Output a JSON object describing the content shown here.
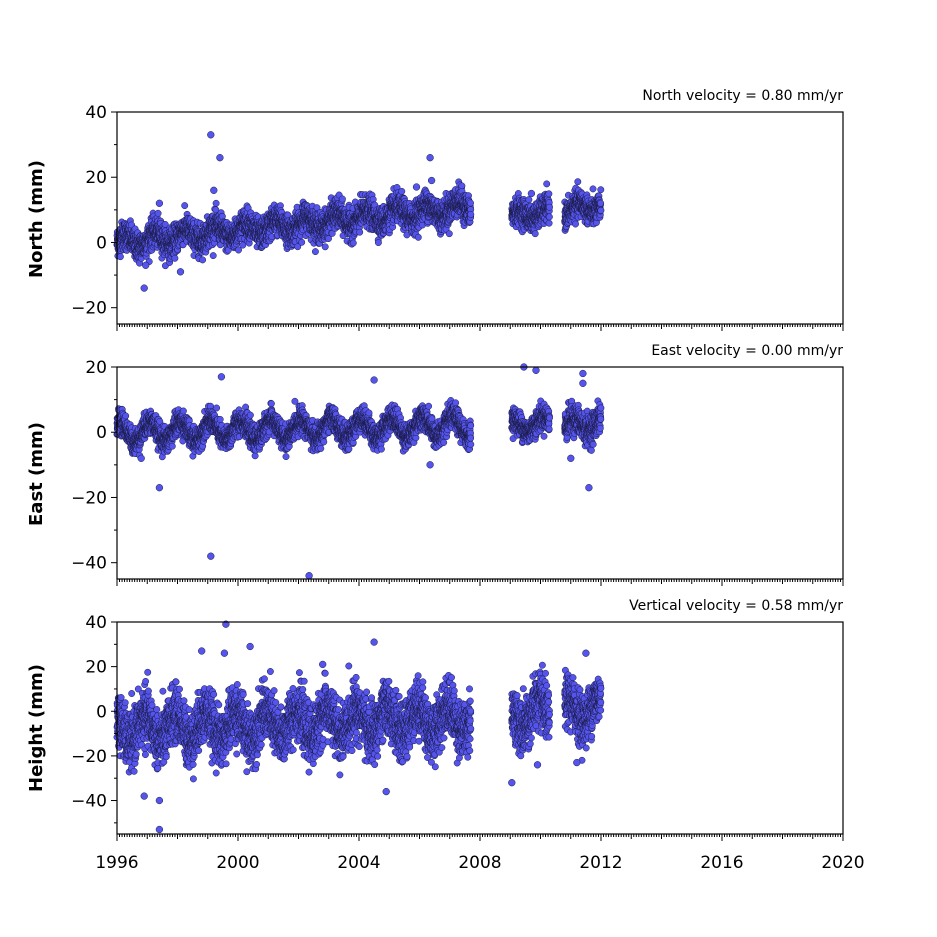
{
  "chart_data": [
    {
      "type": "scatter",
      "title": "North velocity = 0.80 mm/yr",
      "xlabel": "",
      "ylabel": "North (mm)",
      "xlim": [
        1996,
        2020
      ],
      "ylim": [
        -25,
        40
      ],
      "yticks": [
        40,
        20,
        0,
        -20
      ],
      "ytick_labels": [
        "40",
        "20",
        "0",
        "−20"
      ],
      "segments": [
        {
          "x": [
            1996.0,
            2007.7
          ],
          "trend": [
            0.0,
            11.0
          ],
          "amp": 2.0,
          "noise": 2.2
        },
        {
          "x": [
            2009.05,
            2010.3
          ],
          "trend": [
            8.0,
            9.5
          ],
          "amp": 1.5,
          "noise": 2.0
        },
        {
          "x": [
            2010.8,
            2012.0
          ],
          "trend": [
            9.5,
            11.5
          ],
          "amp": 1.8,
          "noise": 2.0
        }
      ],
      "outliers": [
        {
          "x": 1999.1,
          "y": 33
        },
        {
          "x": 1999.4,
          "y": 26
        },
        {
          "x": 1999.2,
          "y": 16
        },
        {
          "x": 2006.35,
          "y": 26
        },
        {
          "x": 2006.4,
          "y": 19
        },
        {
          "x": 1996.9,
          "y": -14
        },
        {
          "x": 1997.4,
          "y": 12
        },
        {
          "x": 1998.1,
          "y": -9
        },
        {
          "x": 2005.9,
          "y": 17
        },
        {
          "x": 2009.7,
          "y": 15
        },
        {
          "x": 1996.95,
          "y": -7
        }
      ],
      "grid": false
    },
    {
      "type": "scatter",
      "title": "East velocity = 0.00 mm/yr",
      "xlabel": "",
      "ylabel": "East (mm)",
      "xlim": [
        1996,
        2020
      ],
      "ylim": [
        -45,
        20
      ],
      "yticks": [
        20,
        0,
        -20,
        -40
      ],
      "ytick_labels": [
        "20",
        "0",
        "−20",
        "−40"
      ],
      "segments": [
        {
          "x": [
            1996.0,
            2007.7
          ],
          "trend": [
            0.0,
            2.0
          ],
          "amp": 3.0,
          "noise": 1.8
        },
        {
          "x": [
            2009.05,
            2010.3
          ],
          "trend": [
            2.0,
            3.0
          ],
          "amp": 2.0,
          "noise": 1.8
        },
        {
          "x": [
            2010.8,
            2012.0
          ],
          "trend": [
            2.0,
            3.0
          ],
          "amp": 2.0,
          "noise": 2.2
        }
      ],
      "outliers": [
        {
          "x": 1999.1,
          "y": -38
        },
        {
          "x": 2002.35,
          "y": -44
        },
        {
          "x": 1997.4,
          "y": -17
        },
        {
          "x": 1999.45,
          "y": 17
        },
        {
          "x": 2004.5,
          "y": 16
        },
        {
          "x": 2009.45,
          "y": 20
        },
        {
          "x": 2009.85,
          "y": 19
        },
        {
          "x": 2011.4,
          "y": 18
        },
        {
          "x": 2011.4,
          "y": 15
        },
        {
          "x": 2011.6,
          "y": -17
        },
        {
          "x": 2011.0,
          "y": -8
        },
        {
          "x": 2006.35,
          "y": -10
        },
        {
          "x": 1996.8,
          "y": -8
        }
      ],
      "grid": false
    },
    {
      "type": "scatter",
      "title": "Vertical velocity = 0.58 mm/yr",
      "xlabel": "",
      "ylabel": "Height (mm)",
      "xlim": [
        1996,
        2020
      ],
      "ylim": [
        -55,
        40
      ],
      "yticks": [
        40,
        20,
        0,
        -20,
        -40
      ],
      "ytick_labels": [
        "40",
        "20",
        "0",
        "−20",
        "−40"
      ],
      "xticks": [
        1996,
        2000,
        2004,
        2008,
        2012,
        2016,
        2020
      ],
      "xtick_labels": [
        "1996",
        "2000",
        "2004",
        "2008",
        "2012",
        "2016",
        "2020"
      ],
      "segments": [
        {
          "x": [
            1996.0,
            2007.7
          ],
          "trend": [
            -8.0,
            -3.0
          ],
          "amp": 6.0,
          "noise": 6.0
        },
        {
          "x": [
            2009.05,
            2010.3
          ],
          "trend": [
            -3.0,
            0.0
          ],
          "amp": 6.0,
          "noise": 6.0
        },
        {
          "x": [
            2010.8,
            2012.0
          ],
          "trend": [
            0.0,
            2.0
          ],
          "amp": 5.0,
          "noise": 5.5
        }
      ],
      "outliers": [
        {
          "x": 1997.4,
          "y": -53
        },
        {
          "x": 1997.4,
          "y": -40
        },
        {
          "x": 1996.9,
          "y": -38
        },
        {
          "x": 1999.6,
          "y": 39
        },
        {
          "x": 1999.55,
          "y": 26
        },
        {
          "x": 2004.5,
          "y": 31
        },
        {
          "x": 2004.9,
          "y": -36
        },
        {
          "x": 2009.05,
          "y": -32
        },
        {
          "x": 2000.4,
          "y": 29
        },
        {
          "x": 1998.8,
          "y": 27
        },
        {
          "x": 2011.5,
          "y": 26
        },
        {
          "x": 2002.8,
          "y": 21
        },
        {
          "x": 2009.9,
          "y": -24
        },
        {
          "x": 2011.2,
          "y": -23
        }
      ],
      "grid": false
    }
  ]
}
